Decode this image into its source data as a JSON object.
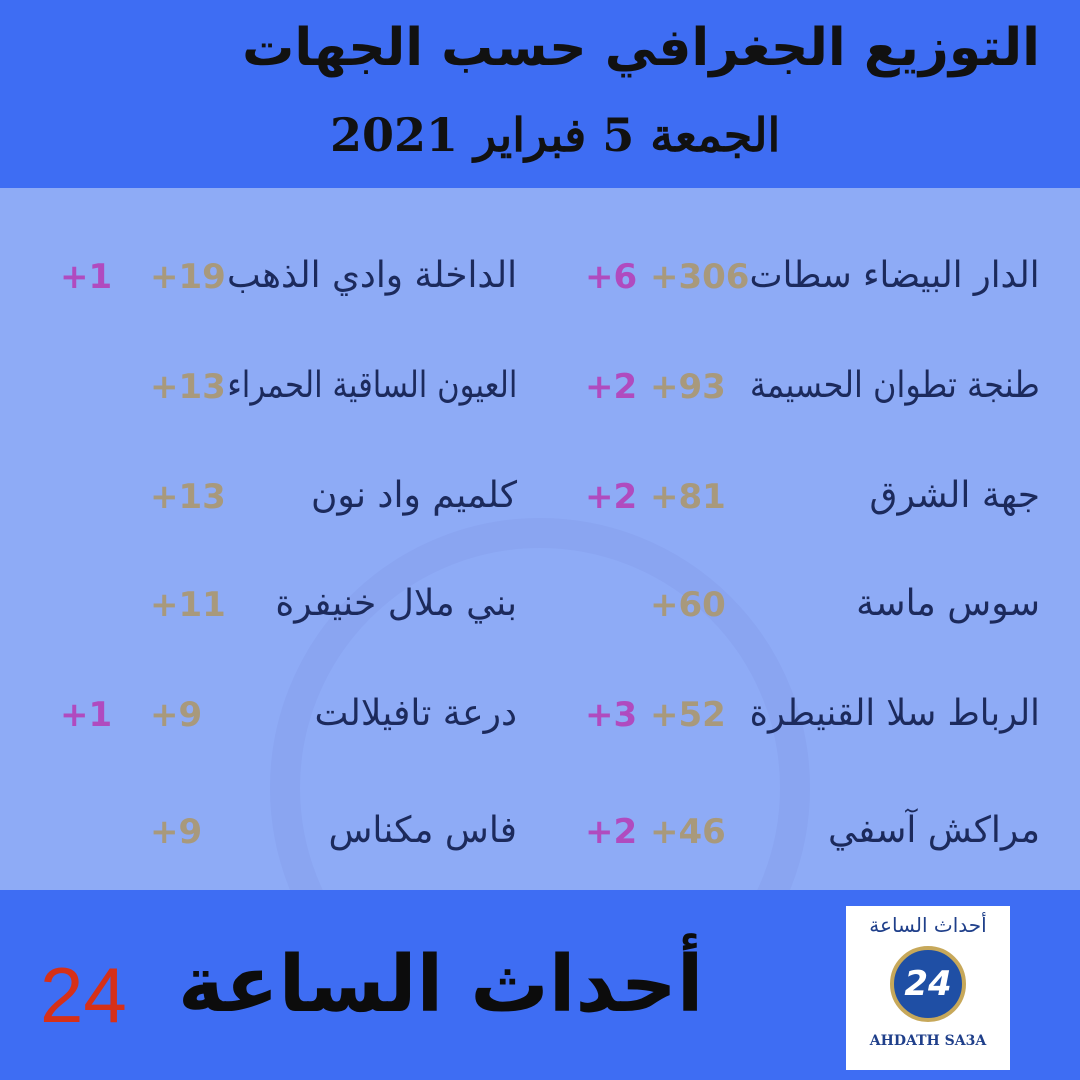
{
  "header": {
    "title": "التوزيع الجغرافي حسب الجهات",
    "date": "الجمعة 5 فبراير 2021"
  },
  "colors": {
    "header_bg": "#3e6df3",
    "body_bg": "#8eabf6",
    "total": "#a8997c",
    "new": "#b04bbf",
    "brand_number": "#d63018"
  },
  "regions_right": [
    {
      "name": "الدار البيضاء سطات",
      "total": "+306",
      "new": "+6"
    },
    {
      "name": "طنجة تطوان الحسيمة",
      "total": "+93",
      "new": "+2"
    },
    {
      "name": "جهة الشرق",
      "total": "+81",
      "new": "+2"
    },
    {
      "name": "سوس ماسة",
      "total": "+60",
      "new": ""
    },
    {
      "name": "الرباط سلا القنيطرة",
      "total": "+52",
      "new": "+3"
    },
    {
      "name": "مراكش آسفي",
      "total": "+46",
      "new": "+2"
    }
  ],
  "regions_left": [
    {
      "name": "الداخلة وادي الذهب",
      "total": "+19",
      "new": "+1"
    },
    {
      "name": "العيون الساقية الحمراء",
      "total": "+13",
      "new": ""
    },
    {
      "name": "كلميم واد نون",
      "total": "+13",
      "new": ""
    },
    {
      "name": "بني ملال خنيفرة",
      "total": "+11",
      "new": ""
    },
    {
      "name": "درعة تافيلالت",
      "total": "+9",
      "new": "+1"
    },
    {
      "name": "فاس مكناس",
      "total": "+9",
      "new": ""
    }
  ],
  "footer": {
    "brand": "أحداث الساعة",
    "brand_number": "24",
    "logo_ar": "أحداث الساعة",
    "logo_num": "24",
    "logo_en": "AHDATH SA3A"
  }
}
